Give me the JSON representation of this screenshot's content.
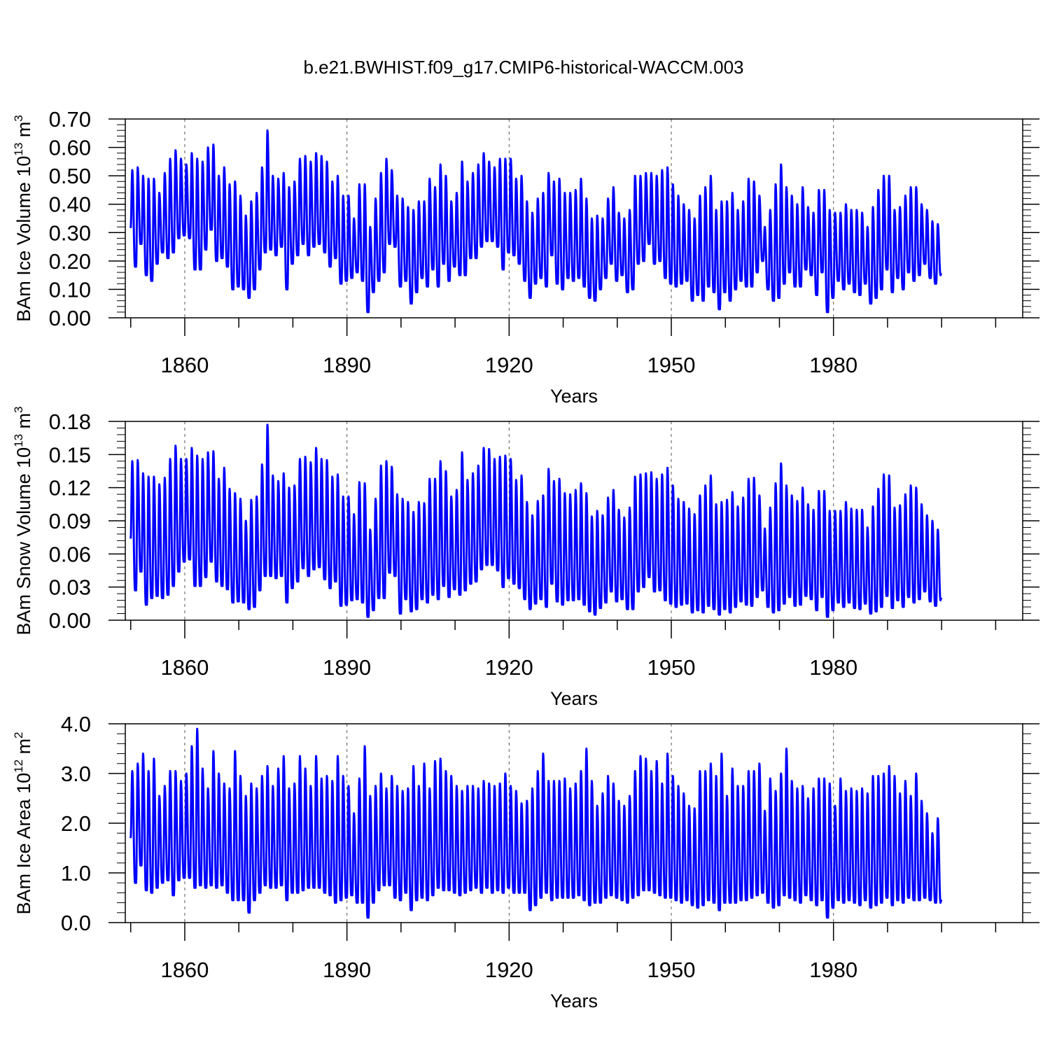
{
  "title": "b.e21.BWHIST.f09_g17.CMIP6-historical-WACCM.003",
  "line_color": "#0000ff",
  "chart_data": [
    {
      "type": "line",
      "title": "",
      "xlabel": "Years",
      "ylabel_main": "BAm Ice Volume 10",
      "ylabel_exp": "13",
      "ylabel_unit": " m",
      "ylabel_unit_exp": "3",
      "xlim": [
        1849,
        2015
      ],
      "ylim": [
        0,
        0.7
      ],
      "yticks": [
        0.0,
        0.1,
        0.2,
        0.3,
        0.4,
        0.5,
        0.6,
        0.7
      ],
      "ytick_labels": [
        "0.00",
        "0.10",
        "0.20",
        "0.30",
        "0.40",
        "0.50",
        "0.60",
        "0.70"
      ],
      "xticks": [
        1860,
        1890,
        1920,
        1950,
        1980
      ],
      "xtick_labels": [
        "1860",
        "1890",
        "1920",
        "1950",
        "1980"
      ],
      "grid": "vertical dashed at major x ticks",
      "series": [
        {
          "start_year": 1850,
          "annual_max": [
            0.52,
            0.53,
            0.5,
            0.49,
            0.49,
            0.44,
            0.51,
            0.56,
            0.59,
            0.56,
            0.54,
            0.58,
            0.56,
            0.55,
            0.6,
            0.61,
            0.5,
            0.53,
            0.47,
            0.48,
            0.43,
            0.36,
            0.41,
            0.44,
            0.53,
            0.66,
            0.5,
            0.49,
            0.51,
            0.46,
            0.48,
            0.56,
            0.57,
            0.55,
            0.58,
            0.57,
            0.55,
            0.48,
            0.5,
            0.43,
            0.43,
            0.35,
            0.47,
            0.47,
            0.32,
            0.42,
            0.51,
            0.56,
            0.52,
            0.43,
            0.42,
            0.39,
            0.38,
            0.41,
            0.41,
            0.49,
            0.46,
            0.54,
            0.5,
            0.41,
            0.44,
            0.55,
            0.48,
            0.51,
            0.54,
            0.58,
            0.55,
            0.53,
            0.56,
            0.56,
            0.56,
            0.49,
            0.5,
            0.41,
            0.37,
            0.42,
            0.44,
            0.51,
            0.48,
            0.49,
            0.44,
            0.44,
            0.45,
            0.49,
            0.42,
            0.35,
            0.36,
            0.35,
            0.42,
            0.46,
            0.37,
            0.35,
            0.38,
            0.5,
            0.5,
            0.51,
            0.51,
            0.5,
            0.52,
            0.53,
            0.47,
            0.43,
            0.4,
            0.38,
            0.35,
            0.43,
            0.46,
            0.5,
            0.38,
            0.41,
            0.41,
            0.44,
            0.38,
            0.41,
            0.49,
            0.48,
            0.43,
            0.32,
            0.38,
            0.47,
            0.54,
            0.46,
            0.43,
            0.4,
            0.46,
            0.39,
            0.37,
            0.45,
            0.45,
            0.38,
            0.37,
            0.37,
            0.4,
            0.38,
            0.38,
            0.37,
            0.32,
            0.39,
            0.45,
            0.5,
            0.5,
            0.38,
            0.39,
            0.43,
            0.46,
            0.46,
            0.4,
            0.38,
            0.34,
            0.33
          ],
          "annual_min": [
            0.18,
            0.26,
            0.15,
            0.13,
            0.19,
            0.23,
            0.21,
            0.23,
            0.28,
            0.29,
            0.28,
            0.17,
            0.17,
            0.24,
            0.31,
            0.2,
            0.21,
            0.18,
            0.1,
            0.11,
            0.1,
            0.07,
            0.1,
            0.17,
            0.23,
            0.24,
            0.22,
            0.25,
            0.1,
            0.19,
            0.22,
            0.26,
            0.22,
            0.25,
            0.26,
            0.23,
            0.18,
            0.21,
            0.12,
            0.13,
            0.14,
            0.16,
            0.13,
            0.02,
            0.09,
            0.13,
            0.16,
            0.26,
            0.25,
            0.11,
            0.13,
            0.05,
            0.09,
            0.14,
            0.11,
            0.17,
            0.11,
            0.19,
            0.13,
            0.18,
            0.15,
            0.15,
            0.21,
            0.21,
            0.25,
            0.27,
            0.27,
            0.25,
            0.17,
            0.23,
            0.22,
            0.19,
            0.13,
            0.07,
            0.12,
            0.14,
            0.11,
            0.22,
            0.12,
            0.1,
            0.14,
            0.13,
            0.14,
            0.11,
            0.07,
            0.06,
            0.1,
            0.14,
            0.19,
            0.13,
            0.15,
            0.09,
            0.1,
            0.19,
            0.2,
            0.26,
            0.19,
            0.2,
            0.14,
            0.12,
            0.11,
            0.12,
            0.13,
            0.06,
            0.08,
            0.06,
            0.11,
            0.09,
            0.03,
            0.09,
            0.06,
            0.1,
            0.13,
            0.11,
            0.11,
            0.16,
            0.2,
            0.1,
            0.06,
            0.07,
            0.12,
            0.16,
            0.11,
            0.11,
            0.17,
            0.15,
            0.08,
            0.16,
            0.02,
            0.07,
            0.13,
            0.1,
            0.12,
            0.09,
            0.08,
            0.12,
            0.05,
            0.07,
            0.1,
            0.17,
            0.09,
            0.14,
            0.1,
            0.16,
            0.13,
            0.15,
            0.19,
            0.14,
            0.12,
            0.15
          ]
        }
      ]
    },
    {
      "type": "line",
      "title": "",
      "xlabel": "Years",
      "ylabel_main": "BAm Snow Volume 10",
      "ylabel_exp": "13",
      "ylabel_unit": " m",
      "ylabel_unit_exp": "3",
      "xlim": [
        1849,
        2015
      ],
      "ylim": [
        0,
        0.18
      ],
      "yticks": [
        0.0,
        0.03,
        0.06,
        0.09,
        0.12,
        0.15,
        0.18
      ],
      "ytick_labels": [
        "0.00",
        "0.03",
        "0.06",
        "0.09",
        "0.12",
        "0.15",
        "0.18"
      ],
      "xticks": [
        1860,
        1890,
        1920,
        1950,
        1980
      ],
      "xtick_labels": [
        "1860",
        "1890",
        "1920",
        "1950",
        "1980"
      ],
      "grid": "vertical dashed at major x ticks",
      "series": [
        {
          "start_year": 1850,
          "annual_max": [
            0.144,
            0.145,
            0.133,
            0.13,
            0.13,
            0.123,
            0.129,
            0.146,
            0.158,
            0.146,
            0.146,
            0.156,
            0.149,
            0.146,
            0.152,
            0.153,
            0.128,
            0.138,
            0.119,
            0.115,
            0.11,
            0.09,
            0.109,
            0.112,
            0.141,
            0.177,
            0.131,
            0.126,
            0.133,
            0.12,
            0.122,
            0.146,
            0.148,
            0.143,
            0.156,
            0.146,
            0.145,
            0.13,
            0.132,
            0.112,
            0.112,
            0.096,
            0.125,
            0.124,
            0.082,
            0.11,
            0.14,
            0.144,
            0.139,
            0.114,
            0.11,
            0.107,
            0.098,
            0.107,
            0.106,
            0.128,
            0.128,
            0.144,
            0.135,
            0.112,
            0.118,
            0.152,
            0.127,
            0.133,
            0.14,
            0.156,
            0.155,
            0.146,
            0.148,
            0.149,
            0.146,
            0.127,
            0.131,
            0.107,
            0.095,
            0.108,
            0.113,
            0.137,
            0.126,
            0.128,
            0.115,
            0.114,
            0.118,
            0.124,
            0.115,
            0.094,
            0.099,
            0.095,
            0.111,
            0.118,
            0.1,
            0.093,
            0.102,
            0.13,
            0.132,
            0.133,
            0.134,
            0.128,
            0.132,
            0.138,
            0.122,
            0.11,
            0.107,
            0.101,
            0.096,
            0.113,
            0.122,
            0.131,
            0.105,
            0.107,
            0.109,
            0.116,
            0.103,
            0.111,
            0.128,
            0.129,
            0.113,
            0.083,
            0.102,
            0.124,
            0.142,
            0.122,
            0.113,
            0.108,
            0.12,
            0.105,
            0.1,
            0.117,
            0.117,
            0.099,
            0.099,
            0.099,
            0.107,
            0.101,
            0.1,
            0.1,
            0.084,
            0.103,
            0.119,
            0.132,
            0.131,
            0.102,
            0.104,
            0.114,
            0.122,
            0.12,
            0.105,
            0.095,
            0.09,
            0.082
          ],
          "annual_min": [
            0.027,
            0.044,
            0.014,
            0.02,
            0.022,
            0.02,
            0.023,
            0.031,
            0.044,
            0.053,
            0.055,
            0.031,
            0.031,
            0.039,
            0.053,
            0.035,
            0.031,
            0.028,
            0.016,
            0.017,
            0.016,
            0.01,
            0.012,
            0.027,
            0.04,
            0.04,
            0.038,
            0.04,
            0.016,
            0.029,
            0.035,
            0.047,
            0.04,
            0.046,
            0.048,
            0.037,
            0.029,
            0.035,
            0.013,
            0.014,
            0.018,
            0.019,
            0.016,
            0.003,
            0.009,
            0.02,
            0.02,
            0.043,
            0.04,
            0.006,
            0.019,
            0.008,
            0.01,
            0.019,
            0.016,
            0.023,
            0.019,
            0.031,
            0.021,
            0.028,
            0.023,
            0.027,
            0.033,
            0.035,
            0.046,
            0.05,
            0.05,
            0.045,
            0.03,
            0.038,
            0.033,
            0.029,
            0.019,
            0.01,
            0.015,
            0.019,
            0.012,
            0.033,
            0.017,
            0.014,
            0.018,
            0.018,
            0.019,
            0.014,
            0.008,
            0.005,
            0.011,
            0.016,
            0.026,
            0.017,
            0.019,
            0.01,
            0.01,
            0.026,
            0.03,
            0.039,
            0.026,
            0.027,
            0.018,
            0.015,
            0.012,
            0.014,
            0.015,
            0.007,
            0.009,
            0.007,
            0.013,
            0.01,
            0.005,
            0.01,
            0.007,
            0.012,
            0.017,
            0.014,
            0.013,
            0.021,
            0.027,
            0.012,
            0.007,
            0.009,
            0.015,
            0.021,
            0.013,
            0.014,
            0.022,
            0.019,
            0.009,
            0.021,
            0.003,
            0.009,
            0.016,
            0.012,
            0.016,
            0.011,
            0.01,
            0.015,
            0.006,
            0.008,
            0.012,
            0.022,
            0.011,
            0.018,
            0.012,
            0.021,
            0.016,
            0.019,
            0.026,
            0.017,
            0.013,
            0.018
          ]
        }
      ]
    },
    {
      "type": "line",
      "title": "",
      "xlabel": "Years",
      "ylabel_main": "BAm Ice Area 10",
      "ylabel_exp": "12",
      "ylabel_unit": " m",
      "ylabel_unit_exp": "2",
      "xlim": [
        1849,
        2015
      ],
      "ylim": [
        0,
        4.0
      ],
      "yticks": [
        0.0,
        1.0,
        2.0,
        3.0,
        4.0
      ],
      "ytick_labels": [
        "0.0",
        "1.0",
        "2.0",
        "3.0",
        "4.0"
      ],
      "xticks": [
        1860,
        1890,
        1920,
        1950,
        1980
      ],
      "xtick_labels": [
        "1860",
        "1890",
        "1920",
        "1950",
        "1980"
      ],
      "grid": "vertical dashed at major x ticks",
      "series": [
        {
          "start_year": 1850,
          "annual_max": [
            3.05,
            3.2,
            3.4,
            3.05,
            3.3,
            2.55,
            2.75,
            3.05,
            3.05,
            2.85,
            3.0,
            3.55,
            3.9,
            3.1,
            2.7,
            3.45,
            3.0,
            2.8,
            2.7,
            3.45,
            2.95,
            2.55,
            2.8,
            2.7,
            2.95,
            3.15,
            2.75,
            3.1,
            3.35,
            2.7,
            2.8,
            3.35,
            3.1,
            2.75,
            3.35,
            2.9,
            2.95,
            2.85,
            3.35,
            2.95,
            2.75,
            2.2,
            2.9,
            3.55,
            2.55,
            2.75,
            3.0,
            2.7,
            2.95,
            2.75,
            2.65,
            2.7,
            3.15,
            2.75,
            3.2,
            2.7,
            3.25,
            3.3,
            3.05,
            2.95,
            2.75,
            2.65,
            2.75,
            2.75,
            2.7,
            2.85,
            2.8,
            2.75,
            2.8,
            3.0,
            2.75,
            2.65,
            2.4,
            2.45,
            2.7,
            3.05,
            3.4,
            2.85,
            2.85,
            2.85,
            2.9,
            2.7,
            2.8,
            3.05,
            3.5,
            2.85,
            2.35,
            2.6,
            2.95,
            2.8,
            2.45,
            2.35,
            2.55,
            3.05,
            3.35,
            3.3,
            3.05,
            3.25,
            2.8,
            3.4,
            2.95,
            2.75,
            2.6,
            2.35,
            2.3,
            3.05,
            3.05,
            3.2,
            2.95,
            3.4,
            2.55,
            3.1,
            2.75,
            2.75,
            3.05,
            3.05,
            3.2,
            2.25,
            2.9,
            2.65,
            3.0,
            3.5,
            2.85,
            2.7,
            2.75,
            2.5,
            2.7,
            2.9,
            2.9,
            2.8,
            2.35,
            2.9,
            2.65,
            2.7,
            2.65,
            2.7,
            2.6,
            2.95,
            2.95,
            3.0,
            3.15,
            2.95,
            2.6,
            2.85,
            2.55,
            3.0,
            2.45,
            2.2,
            1.8,
            2.1
          ],
          "annual_min": [
            0.8,
            1.15,
            0.65,
            0.6,
            0.7,
            0.8,
            0.85,
            0.55,
            0.85,
            0.9,
            0.9,
            0.7,
            0.75,
            0.7,
            0.75,
            0.7,
            0.75,
            0.6,
            0.45,
            0.45,
            0.45,
            0.2,
            0.45,
            0.6,
            0.75,
            0.7,
            0.7,
            0.75,
            0.45,
            0.6,
            0.6,
            0.65,
            0.7,
            0.7,
            0.7,
            0.6,
            0.55,
            0.4,
            0.45,
            0.5,
            0.55,
            0.4,
            0.4,
            0.1,
            0.4,
            0.65,
            0.75,
            0.75,
            0.5,
            0.45,
            0.6,
            0.25,
            0.45,
            0.5,
            0.45,
            0.55,
            0.7,
            0.65,
            0.65,
            0.6,
            0.55,
            0.6,
            0.65,
            0.7,
            0.6,
            0.7,
            0.6,
            0.65,
            0.6,
            0.7,
            0.6,
            0.6,
            0.6,
            0.25,
            0.35,
            0.5,
            0.6,
            0.45,
            0.5,
            0.5,
            0.5,
            0.5,
            0.55,
            0.45,
            0.35,
            0.4,
            0.4,
            0.5,
            0.55,
            0.5,
            0.45,
            0.4,
            0.5,
            0.55,
            0.65,
            0.65,
            0.6,
            0.55,
            0.5,
            0.5,
            0.45,
            0.4,
            0.45,
            0.35,
            0.3,
            0.35,
            0.45,
            0.4,
            0.25,
            0.4,
            0.4,
            0.4,
            0.45,
            0.45,
            0.5,
            0.55,
            0.6,
            0.4,
            0.3,
            0.35,
            0.55,
            0.5,
            0.45,
            0.4,
            0.55,
            0.45,
            0.35,
            0.45,
            0.1,
            0.3,
            0.45,
            0.4,
            0.45,
            0.4,
            0.35,
            0.45,
            0.3,
            0.35,
            0.4,
            0.5,
            0.35,
            0.45,
            0.4,
            0.5,
            0.45,
            0.45,
            0.5,
            0.45,
            0.4,
            0.4
          ]
        }
      ]
    }
  ]
}
